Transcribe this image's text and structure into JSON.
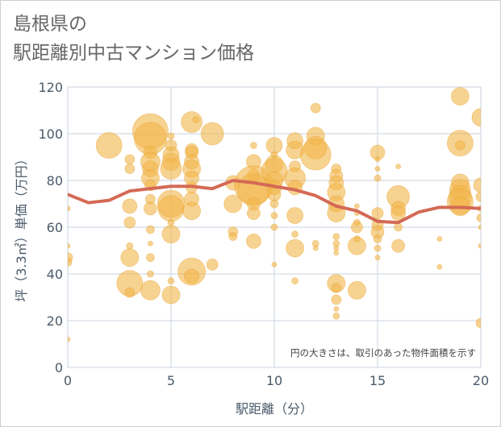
{
  "title": {
    "line1": "島根県の",
    "line2": "駅距離別中古マンション価格"
  },
  "chart_data": {
    "type": "scatter",
    "xlabel": "駅距離（分）",
    "ylabel": "坪（3.3㎡）単価（万円）",
    "xlim": [
      0,
      20
    ],
    "ylim": [
      0,
      120
    ],
    "xticks": [
      "0",
      "5",
      "10",
      "15",
      "20"
    ],
    "yticks": [
      "0",
      "20",
      "40",
      "60",
      "80",
      "100",
      "120"
    ],
    "grid": true,
    "annotation": "円の大きさは、取引のあった物件面積を示す",
    "colors": {
      "bubble": "#f2b64a",
      "line": "#d46a55",
      "grid": "#c9d3df",
      "plot_bg": "#ffffff"
    },
    "average_line": {
      "x": [
        0,
        1,
        2,
        3,
        4,
        5,
        6,
        7,
        8,
        9,
        10,
        11,
        12,
        13,
        14,
        15,
        16,
        17,
        18,
        19,
        20
      ],
      "y": [
        74,
        70.5,
        71.5,
        75.5,
        76.5,
        77.5,
        77.5,
        76.5,
        80,
        79,
        77.5,
        76,
        73.5,
        69,
        67,
        62.5,
        62,
        66.5,
        68.5,
        68.5,
        68
      ]
    },
    "bubbles": [
      {
        "x": 0,
        "y": 68,
        "s": 3
      },
      {
        "x": 0,
        "y": 52,
        "s": 3
      },
      {
        "x": 0,
        "y": 47,
        "s": 6
      },
      {
        "x": 0,
        "y": 45,
        "s": 5
      },
      {
        "x": 0,
        "y": 12,
        "s": 3
      },
      {
        "x": 2,
        "y": 95,
        "s": 16
      },
      {
        "x": 3,
        "y": 89,
        "s": 6
      },
      {
        "x": 3,
        "y": 85,
        "s": 6
      },
      {
        "x": 3,
        "y": 69,
        "s": 9
      },
      {
        "x": 3,
        "y": 62,
        "s": 7
      },
      {
        "x": 3,
        "y": 52,
        "s": 4
      },
      {
        "x": 3,
        "y": 47,
        "s": 11
      },
      {
        "x": 3,
        "y": 36,
        "s": 16
      },
      {
        "x": 3,
        "y": 32,
        "s": 6
      },
      {
        "x": 4,
        "y": 101,
        "s": 22
      },
      {
        "x": 4,
        "y": 98,
        "s": 20
      },
      {
        "x": 4,
        "y": 92,
        "s": 8
      },
      {
        "x": 4,
        "y": 88,
        "s": 12
      },
      {
        "x": 4,
        "y": 85,
        "s": 10
      },
      {
        "x": 4,
        "y": 81,
        "s": 11
      },
      {
        "x": 4,
        "y": 78,
        "s": 7
      },
      {
        "x": 4,
        "y": 72,
        "s": 6
      },
      {
        "x": 4,
        "y": 68,
        "s": 8
      },
      {
        "x": 4,
        "y": 59,
        "s": 5
      },
      {
        "x": 4,
        "y": 53,
        "s": 3
      },
      {
        "x": 4,
        "y": 47,
        "s": 5
      },
      {
        "x": 4,
        "y": 40,
        "s": 4
      },
      {
        "x": 4,
        "y": 33,
        "s": 12
      },
      {
        "x": 5,
        "y": 99,
        "s": 4
      },
      {
        "x": 5,
        "y": 95,
        "s": 7
      },
      {
        "x": 5,
        "y": 91,
        "s": 10
      },
      {
        "x": 5,
        "y": 88,
        "s": 11
      },
      {
        "x": 5,
        "y": 85,
        "s": 13
      },
      {
        "x": 5,
        "y": 70,
        "s": 17
      },
      {
        "x": 5,
        "y": 68,
        "s": 16
      },
      {
        "x": 5,
        "y": 57,
        "s": 11
      },
      {
        "x": 5,
        "y": 62,
        "s": 4
      },
      {
        "x": 5,
        "y": 37,
        "s": 4
      },
      {
        "x": 5,
        "y": 31,
        "s": 11
      },
      {
        "x": 6,
        "y": 105,
        "s": 13
      },
      {
        "x": 6,
        "y": 93,
        "s": 8
      },
      {
        "x": 6,
        "y": 92,
        "s": 8
      },
      {
        "x": 6,
        "y": 88,
        "s": 9
      },
      {
        "x": 6,
        "y": 85,
        "s": 11
      },
      {
        "x": 6,
        "y": 81,
        "s": 9
      },
      {
        "x": 6,
        "y": 77,
        "s": 7
      },
      {
        "x": 6,
        "y": 72,
        "s": 9
      },
      {
        "x": 6,
        "y": 67,
        "s": 11
      },
      {
        "x": 6,
        "y": 41,
        "s": 17
      },
      {
        "x": 6,
        "y": 39,
        "s": 9
      },
      {
        "x": 6.2,
        "y": 106,
        "s": 4
      },
      {
        "x": 7,
        "y": 100,
        "s": 14
      },
      {
        "x": 7,
        "y": 44,
        "s": 7
      },
      {
        "x": 8,
        "y": 79,
        "s": 9
      },
      {
        "x": 8,
        "y": 70,
        "s": 11
      },
      {
        "x": 8,
        "y": 58,
        "s": 6
      },
      {
        "x": 8,
        "y": 56,
        "s": 5
      },
      {
        "x": 9,
        "y": 95,
        "s": 4
      },
      {
        "x": 9,
        "y": 88,
        "s": 9
      },
      {
        "x": 9,
        "y": 82,
        "s": 8
      },
      {
        "x": 9,
        "y": 78,
        "s": 24
      },
      {
        "x": 9,
        "y": 76,
        "s": 20
      },
      {
        "x": 9,
        "y": 70,
        "s": 8
      },
      {
        "x": 9,
        "y": 66,
        "s": 8
      },
      {
        "x": 9,
        "y": 54,
        "s": 9
      },
      {
        "x": 10,
        "y": 95,
        "s": 10
      },
      {
        "x": 10,
        "y": 91,
        "s": 4
      },
      {
        "x": 10,
        "y": 87,
        "s": 11
      },
      {
        "x": 10,
        "y": 84,
        "s": 16
      },
      {
        "x": 10,
        "y": 80,
        "s": 11
      },
      {
        "x": 10,
        "y": 77,
        "s": 9
      },
      {
        "x": 10,
        "y": 74,
        "s": 8
      },
      {
        "x": 10,
        "y": 70,
        "s": 5
      },
      {
        "x": 10,
        "y": 65,
        "s": 4
      },
      {
        "x": 10,
        "y": 60,
        "s": 4
      },
      {
        "x": 10,
        "y": 44,
        "s": 3
      },
      {
        "x": 11,
        "y": 97,
        "s": 10
      },
      {
        "x": 11,
        "y": 93,
        "s": 11
      },
      {
        "x": 11,
        "y": 86,
        "s": 7
      },
      {
        "x": 11,
        "y": 81,
        "s": 13
      },
      {
        "x": 11,
        "y": 77,
        "s": 9
      },
      {
        "x": 11,
        "y": 65,
        "s": 10
      },
      {
        "x": 11,
        "y": 57,
        "s": 4
      },
      {
        "x": 11,
        "y": 51,
        "s": 11
      },
      {
        "x": 11,
        "y": 37,
        "s": 4
      },
      {
        "x": 12,
        "y": 111,
        "s": 6
      },
      {
        "x": 12,
        "y": 99,
        "s": 11
      },
      {
        "x": 12,
        "y": 94,
        "s": 14
      },
      {
        "x": 12,
        "y": 91,
        "s": 19
      },
      {
        "x": 12,
        "y": 53,
        "s": 4
      },
      {
        "x": 12,
        "y": 51,
        "s": 3
      },
      {
        "x": 13,
        "y": 85,
        "s": 6
      },
      {
        "x": 13,
        "y": 82,
        "s": 8
      },
      {
        "x": 13,
        "y": 79,
        "s": 9
      },
      {
        "x": 13,
        "y": 75,
        "s": 11
      },
      {
        "x": 13,
        "y": 70,
        "s": 10
      },
      {
        "x": 13,
        "y": 66,
        "s": 11
      },
      {
        "x": 13,
        "y": 56,
        "s": 4
      },
      {
        "x": 13,
        "y": 53,
        "s": 4
      },
      {
        "x": 13,
        "y": 51,
        "s": 3
      },
      {
        "x": 13,
        "y": 49,
        "s": 3
      },
      {
        "x": 13,
        "y": 36,
        "s": 11
      },
      {
        "x": 13,
        "y": 34,
        "s": 6
      },
      {
        "x": 13,
        "y": 29,
        "s": 6
      },
      {
        "x": 13,
        "y": 25,
        "s": 3
      },
      {
        "x": 13,
        "y": 22,
        "s": 4
      },
      {
        "x": 14,
        "y": 69,
        "s": 3
      },
      {
        "x": 14,
        "y": 66,
        "s": 3
      },
      {
        "x": 14,
        "y": 62,
        "s": 4
      },
      {
        "x": 14,
        "y": 60,
        "s": 7
      },
      {
        "x": 14,
        "y": 55,
        "s": 4
      },
      {
        "x": 14,
        "y": 52,
        "s": 11
      },
      {
        "x": 14,
        "y": 33,
        "s": 11
      },
      {
        "x": 15,
        "y": 92,
        "s": 9
      },
      {
        "x": 15,
        "y": 89,
        "s": 3
      },
      {
        "x": 15,
        "y": 85,
        "s": 3
      },
      {
        "x": 15,
        "y": 81,
        "s": 4
      },
      {
        "x": 15,
        "y": 66,
        "s": 7
      },
      {
        "x": 15,
        "y": 61,
        "s": 7
      },
      {
        "x": 15,
        "y": 58,
        "s": 8
      },
      {
        "x": 15,
        "y": 55,
        "s": 5
      },
      {
        "x": 15,
        "y": 51,
        "s": 4
      },
      {
        "x": 15,
        "y": 47,
        "s": 3
      },
      {
        "x": 16,
        "y": 86,
        "s": 3
      },
      {
        "x": 16,
        "y": 73,
        "s": 14
      },
      {
        "x": 16,
        "y": 68,
        "s": 9
      },
      {
        "x": 16,
        "y": 66,
        "s": 9
      },
      {
        "x": 16,
        "y": 60,
        "s": 5
      },
      {
        "x": 16,
        "y": 52,
        "s": 8
      },
      {
        "x": 18,
        "y": 55,
        "s": 3
      },
      {
        "x": 18,
        "y": 43,
        "s": 3
      },
      {
        "x": 19,
        "y": 116,
        "s": 11
      },
      {
        "x": 19,
        "y": 96,
        "s": 16
      },
      {
        "x": 19,
        "y": 95,
        "s": 6
      },
      {
        "x": 19,
        "y": 79,
        "s": 11
      },
      {
        "x": 19,
        "y": 76,
        "s": 13
      },
      {
        "x": 19,
        "y": 73,
        "s": 14
      },
      {
        "x": 19,
        "y": 71,
        "s": 16
      },
      {
        "x": 19,
        "y": 69,
        "s": 12
      },
      {
        "x": 20,
        "y": 107,
        "s": 11
      },
      {
        "x": 20,
        "y": 78,
        "s": 9
      },
      {
        "x": 20,
        "y": 73,
        "s": 6
      },
      {
        "x": 20,
        "y": 68,
        "s": 4
      },
      {
        "x": 20,
        "y": 64,
        "s": 5
      },
      {
        "x": 20,
        "y": 60,
        "s": 3
      },
      {
        "x": 20,
        "y": 52,
        "s": 3
      },
      {
        "x": 20,
        "y": 19,
        "s": 6
      }
    ]
  }
}
